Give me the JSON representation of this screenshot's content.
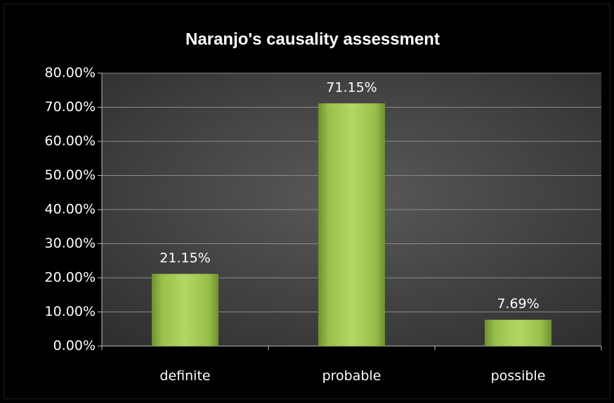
{
  "chart_data": {
    "type": "bar",
    "title": "Naranjo's causality  assessment",
    "categories": [
      "definite",
      "probable",
      "possible"
    ],
    "values": [
      21.15,
      71.15,
      7.69
    ],
    "value_labels": [
      "21.15%",
      "71.15%",
      "7.69%"
    ],
    "color": "#9bc24c",
    "ylim": [
      0,
      80
    ],
    "yticks": [
      {
        "value": 0,
        "label": "0.00%"
      },
      {
        "value": 10,
        "label": "10.00%"
      },
      {
        "value": 20,
        "label": "20.00%"
      },
      {
        "value": 30,
        "label": "30.00%"
      },
      {
        "value": 40,
        "label": "40.00%"
      },
      {
        "value": 50,
        "label": "50.00%"
      },
      {
        "value": 60,
        "label": "60.00%"
      },
      {
        "value": 70,
        "label": "70.00%"
      },
      {
        "value": 80,
        "label": "80.00%"
      }
    ],
    "grid": true
  }
}
